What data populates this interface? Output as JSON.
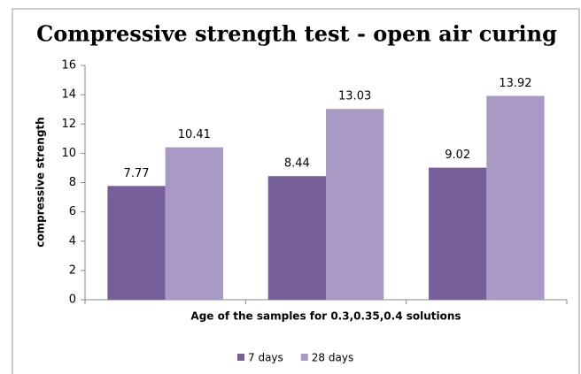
{
  "chart_data": {
    "type": "bar",
    "title": "Compressive strength test - open air curing",
    "x_label": "Age of the samples for 0.3,0.35,0.4 solutions",
    "y_label": "compressive strength",
    "categories": [
      null,
      null,
      null
    ],
    "series": [
      {
        "name": "7 days",
        "color": "#775f9b",
        "values": [
          7.77,
          8.44,
          9.02
        ]
      },
      {
        "name": "28 days",
        "color": "#a89ac4",
        "values": [
          10.41,
          13.03,
          13.92
        ]
      }
    ],
    "ylim": [
      0,
      16
    ],
    "yticks": [
      0,
      2,
      4,
      6,
      8,
      10,
      12,
      14,
      16
    ],
    "grid": false,
    "legend": "bottom"
  }
}
